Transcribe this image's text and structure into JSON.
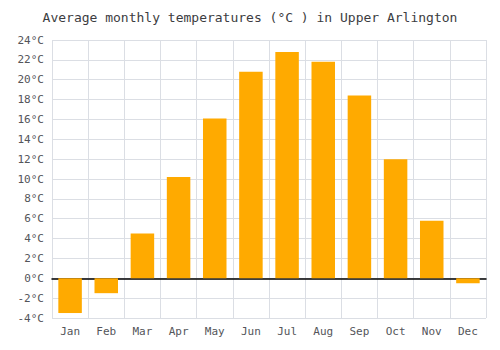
{
  "chart_data": {
    "type": "bar",
    "title": "Average monthly temperatures (°C ) in Upper Arlington",
    "categories": [
      "Jan",
      "Feb",
      "Mar",
      "Apr",
      "May",
      "Jun",
      "Jul",
      "Aug",
      "Sep",
      "Oct",
      "Nov",
      "Dec"
    ],
    "values": [
      -3.5,
      -1.5,
      4.5,
      10.2,
      16.1,
      20.8,
      22.8,
      21.8,
      18.4,
      12.0,
      5.8,
      -0.5
    ],
    "color": "#FFAA00",
    "ylim": [
      -4,
      24
    ],
    "yticks": [
      {
        "value": -4,
        "label": "-4°C"
      },
      {
        "value": -2,
        "label": "-2°C"
      },
      {
        "value": 0,
        "label": "0°C"
      },
      {
        "value": 2,
        "label": "2°C"
      },
      {
        "value": 4,
        "label": "4°C"
      },
      {
        "value": 6,
        "label": "6°C"
      },
      {
        "value": 8,
        "label": "8°C"
      },
      {
        "value": 10,
        "label": "10°C"
      },
      {
        "value": 12,
        "label": "12°C"
      },
      {
        "value": 14,
        "label": "14°C"
      },
      {
        "value": 16,
        "label": "16°C"
      },
      {
        "value": 18,
        "label": "18°C"
      },
      {
        "value": 20,
        "label": "20°C"
      },
      {
        "value": 22,
        "label": "22°C"
      },
      {
        "value": 24,
        "label": "24°C"
      }
    ],
    "grid": true
  }
}
